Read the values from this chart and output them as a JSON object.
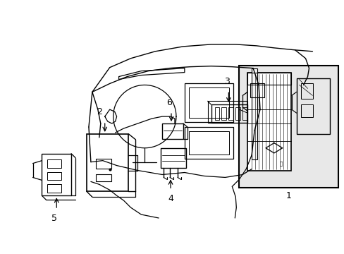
{
  "bg_color": "#ffffff",
  "line_color": "#000000",
  "fig_width": 4.89,
  "fig_height": 3.6,
  "dpi": 100,
  "dash_top_curve": {
    "x": [
      0.13,
      0.22,
      0.34,
      0.46,
      0.56,
      0.63
    ],
    "y": [
      0.74,
      0.78,
      0.8,
      0.78,
      0.76,
      0.74
    ]
  },
  "windshield_top": {
    "x": [
      0.22,
      0.3,
      0.42,
      0.52,
      0.6,
      0.68,
      0.76
    ],
    "y": [
      0.79,
      0.82,
      0.84,
      0.83,
      0.82,
      0.8,
      0.78
    ]
  },
  "right_pillar": {
    "x": [
      0.76,
      0.78,
      0.77,
      0.74
    ],
    "y": [
      0.78,
      0.68,
      0.6,
      0.52
    ]
  }
}
